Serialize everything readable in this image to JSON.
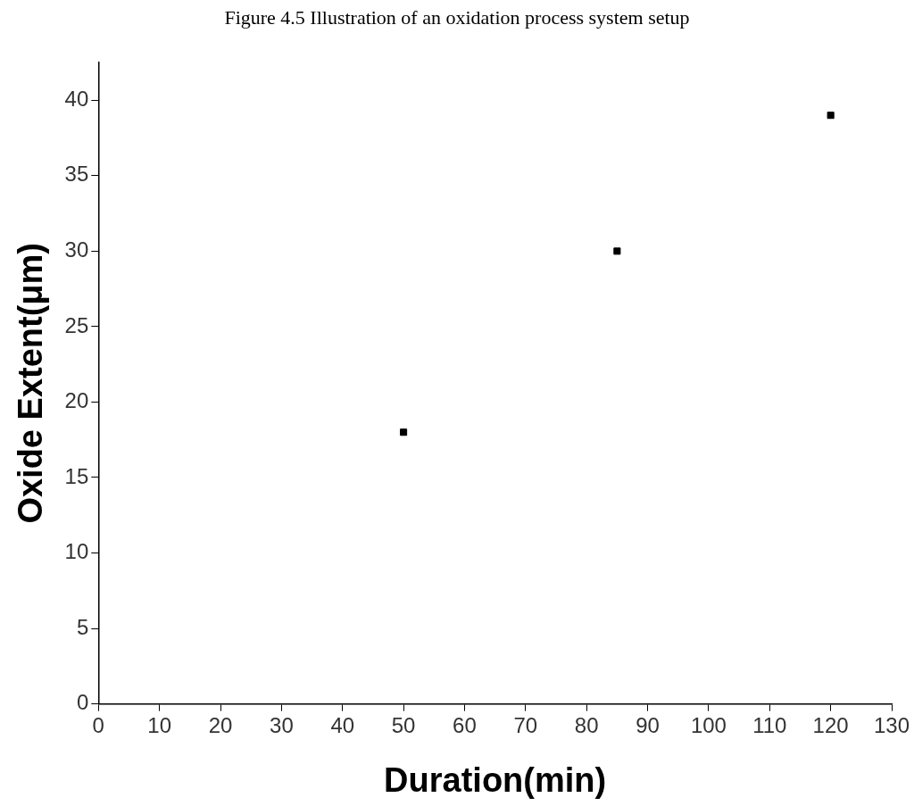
{
  "chart_data": {
    "type": "scatter",
    "annotations": [
      "Figure 4.5 Illustration of an oxidation process system setup"
    ],
    "xlabel": "Duration(min)",
    "ylabel": "Oxide Extent(μm)",
    "x": [
      50,
      85,
      120
    ],
    "values": [
      18,
      30,
      39
    ],
    "color": "#000000",
    "marker": "square",
    "xlim": [
      0,
      130
    ],
    "xticks": [
      0,
      10,
      20,
      30,
      40,
      50,
      60,
      70,
      80,
      90,
      100,
      110,
      120,
      130
    ],
    "ylim": [
      0,
      42.5
    ],
    "yticks": [
      0,
      5,
      10,
      15,
      20,
      25,
      30,
      35,
      40
    ],
    "grid": false,
    "legend": false
  }
}
